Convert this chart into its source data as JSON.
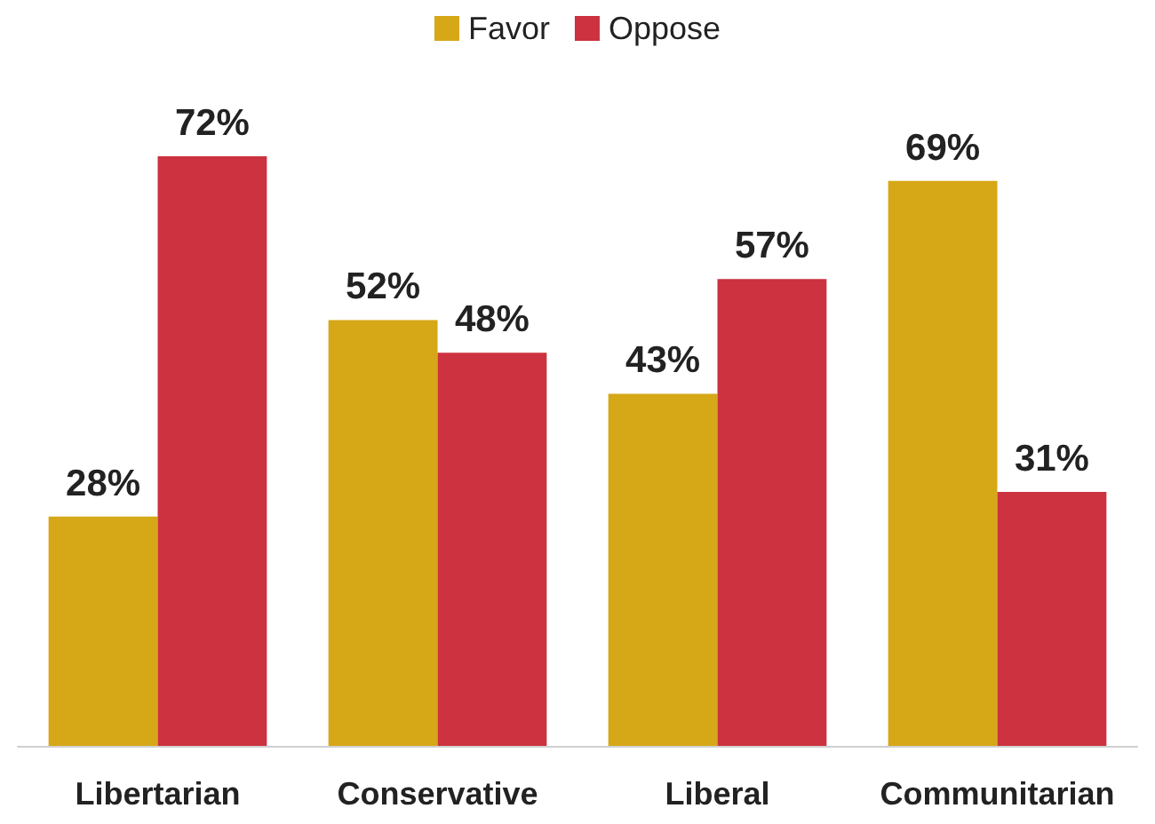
{
  "chart_data": {
    "type": "bar",
    "categories": [
      "Libertarian",
      "Conservative",
      "Liberal",
      "Communitarian"
    ],
    "series": [
      {
        "name": "Favor",
        "color": "#d6a716",
        "values": [
          28,
          52,
          43,
          69
        ],
        "value_labels": [
          "28%",
          "52%",
          "43%",
          "69%"
        ]
      },
      {
        "name": "Oppose",
        "color": "#cc323f",
        "values": [
          72,
          48,
          57,
          31
        ],
        "value_labels": [
          "72%",
          "48%",
          "57%",
          "31%"
        ]
      }
    ],
    "legend": "top"
  }
}
